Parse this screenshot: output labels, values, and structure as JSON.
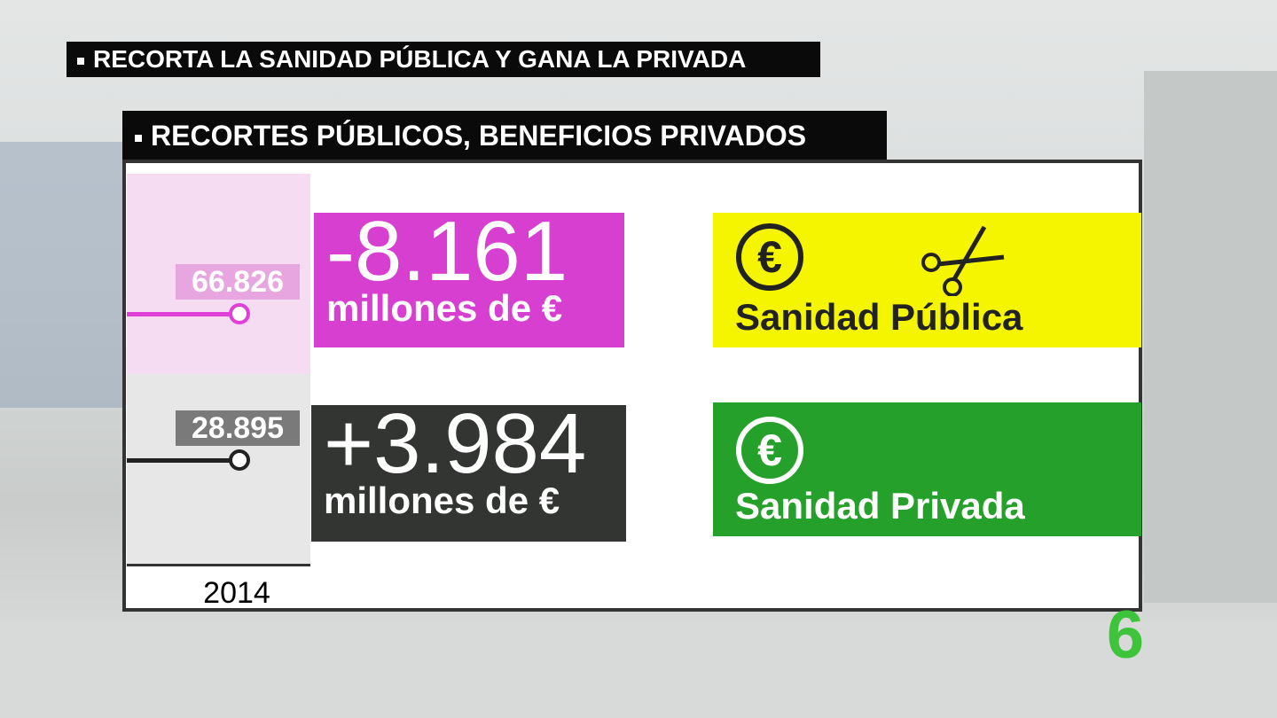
{
  "header": {
    "title": "RECORTA LA SANIDAD PÚBLICA Y GANA LA PRIVADA"
  },
  "panel": {
    "title": "RECORTES PÚBLICOS, BENEFICIOS PRIVADOS",
    "chart": {
      "labels": [
        "66.826",
        "28.895"
      ],
      "year": "2014"
    },
    "cards": [
      {
        "amount": "-8.161",
        "unit": "millones de €"
      },
      {
        "amount": "+3.984",
        "unit": "millones de €"
      }
    ],
    "badges": [
      {
        "symbol": "€",
        "label": "Sanidad Pública"
      },
      {
        "symbol": "€",
        "label": "Sanidad Privada"
      }
    ]
  },
  "logo": "6"
}
